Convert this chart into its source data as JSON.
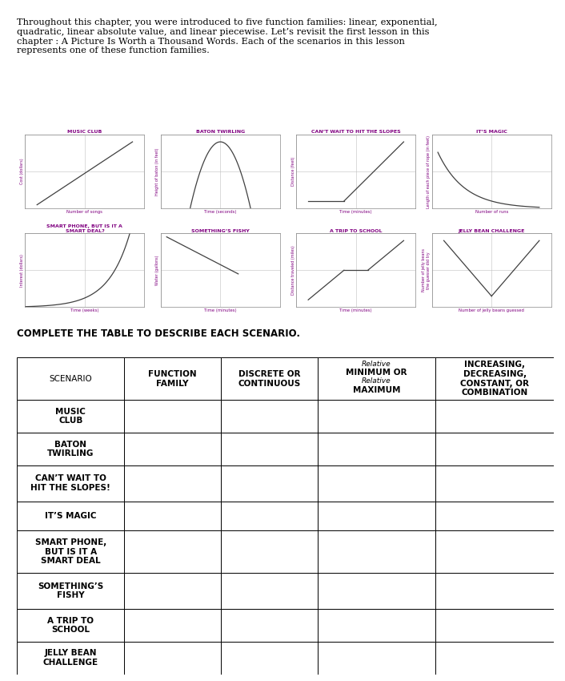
{
  "intro_text": "Throughout this chapter, you were introduced to five function families: linear, exponential,\nquadratic, linear absolute value, and linear piecewise. Let’s revisit the first lesson in this\nchapter : A Picture Is Worth a Thousand Words. Each of the scenarios in this lesson\nrepresents one of these function families.",
  "section_title": "COMPLETE THE TABLE TO DESCRIBE EACH SCENARIO.",
  "graph_titles": [
    "MUSIC CLUB",
    "BATON TWIRLING",
    "CAN’T WAIT TO HIT THE SLOPES",
    "IT’S MAGIC",
    "SMART PHONE, BUT IS IT A\nSMART DEAL?",
    "SOMETHING’S FISHY",
    "A TRIP TO SCHOOL",
    "JELLY BEAN CHALLENGE"
  ],
  "graph_xlabels": [
    "Number of songs",
    "Time (seconds)",
    "Time (minutes)",
    "Number of runs",
    "Time (weeks)",
    "Time (minutes)",
    "Time (minutes)",
    "Number of jelly beans guessed"
  ],
  "graph_ylabels": [
    "Cost (dollars)",
    "Height of baton (in feet)",
    "Distance (feet)",
    "Length of each piece of rope (in feet)",
    "Interest (dollars)",
    "Water (gallons)",
    "Distance traveled (miles)",
    "Number of jelly beans\nthe guesser did try"
  ],
  "title_color": "#800080",
  "label_color": "#800080",
  "line_color": "#404040",
  "grid_color": "#c0c0c0",
  "table_header_font": 9,
  "table_row_font": 8,
  "table_scenarios": [
    "MUSIC\nCLUB",
    "BATON\nTWIRLING",
    "CAN’T WAIT TO\nHIT THE SLOPES!",
    "IT’S MAGIC",
    "SMART PHONE,\nBUT IS IT A\nSMART DEAL",
    "SOMETHING’S\nFISHY",
    "A TRIP TO\nSCHOOL",
    "JELLY BEAN\nCHALLENGE"
  ],
  "table_col_headers": [
    "SCENARIO",
    "FUNCTION\nFAMILY",
    "DISCRETE OR\nCONTINUOUS",
    "Relative\nMINIMUM OR\nRelative\nMAXIMUM",
    "INCREASING,\nDECREASING,\nCONSTANT, OR\nCOMBINATION"
  ],
  "col4_handwritten_top": "Relative",
  "col4_handwritten_bot": "Relative",
  "background_color": "#ffffff"
}
